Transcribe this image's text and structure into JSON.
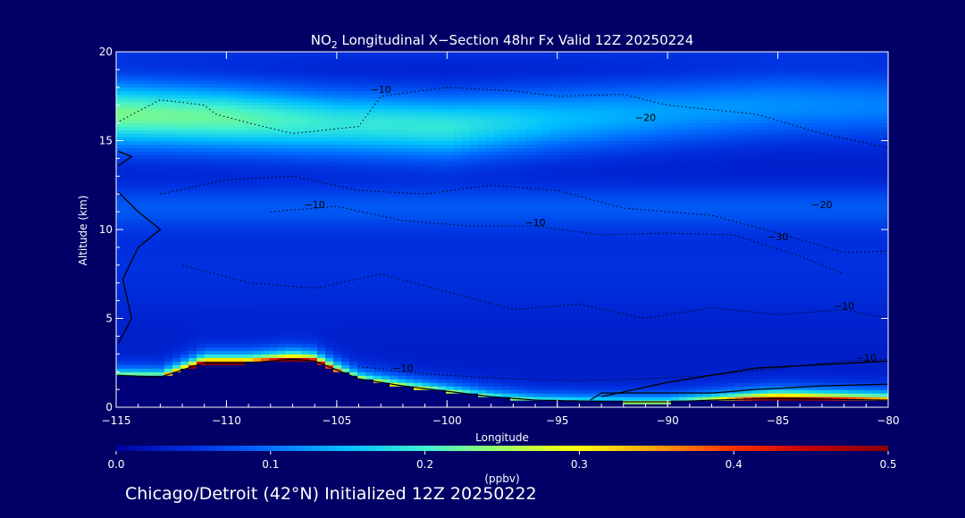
{
  "title_prefix": "NO",
  "title_sub": "2",
  "title_rest": " Longitudinal X−Section 48hr  Fx Valid 12Z 20250224",
  "footer": "Chicago/Detroit (42°N) Initialized 12Z 20250222",
  "chart_data": {
    "type": "heatmap",
    "xlabel": "Longitude",
    "ylabel": "Altitude (km)",
    "xlim": [
      -115,
      -80
    ],
    "ylim": [
      0,
      20
    ],
    "x_ticks": [
      -115,
      -110,
      -105,
      -100,
      -95,
      -90,
      -85,
      -80
    ],
    "x_tick_labels": [
      "−115",
      "−110",
      "−105",
      "−100",
      "−95",
      "−90",
      "−85",
      "−80"
    ],
    "y_ticks": [
      0,
      5,
      10,
      15,
      20
    ],
    "colorbar": {
      "label": "(ppbv)",
      "min": 0.0,
      "max": 0.5,
      "ticks": [
        0.0,
        0.1,
        0.2,
        0.3,
        0.4,
        0.5
      ],
      "tick_labels": [
        "0.0",
        "0.1",
        "0.2",
        "0.3",
        "0.4",
        "0.5"
      ],
      "colors": [
        "#0000a0",
        "#0030e0",
        "#0070ff",
        "#00c0ff",
        "#40f0d0",
        "#a0ff60",
        "#ffff00",
        "#ffa000",
        "#ff3000",
        "#c00000",
        "#880000"
      ]
    },
    "terrain_height_km": {
      "lon": [
        -115,
        -113,
        -111,
        -109,
        -107,
        -106,
        -105,
        -104,
        -102,
        -100,
        -98,
        -96,
        -94,
        -92,
        -90,
        -88,
        -85,
        -83,
        -80
      ],
      "alt": [
        1.8,
        1.7,
        2.5,
        2.5,
        2.7,
        2.6,
        2.1,
        1.6,
        1.2,
        0.9,
        0.6,
        0.4,
        0.35,
        0.3,
        0.3,
        0.4,
        0.5,
        0.45,
        0.4
      ]
    },
    "surface_layer": {
      "lon": [
        -115,
        -113,
        -111,
        -109,
        -107,
        -106,
        -105,
        -104,
        -102,
        -100,
        -98,
        -96,
        -94,
        -92,
        -90,
        -88,
        -86,
        -85,
        -84,
        -82,
        -80
      ],
      "max_ppbv": [
        0.25,
        0.32,
        0.5,
        0.5,
        0.5,
        0.5,
        0.35,
        0.3,
        0.28,
        0.25,
        0.22,
        0.2,
        0.2,
        0.22,
        0.22,
        0.3,
        0.45,
        0.5,
        0.5,
        0.45,
        0.4
      ]
    },
    "upper_layer": {
      "lon": [
        -115,
        -110,
        -105,
        -100,
        -95,
        -90,
        -85,
        -80
      ],
      "center_alt_km": [
        16.5,
        16.3,
        16.0,
        15.8,
        16.2,
        16.6,
        17.0,
        17.0
      ],
      "peak_ppbv": [
        0.2,
        0.19,
        0.16,
        0.16,
        0.12,
        0.1,
        0.09,
        0.08
      ]
    },
    "contour_labels": [
      {
        "text": "−10",
        "lon": -103,
        "alt": 17.7
      },
      {
        "text": "−20",
        "lon": -91,
        "alt": 16.1
      },
      {
        "text": "−10",
        "lon": -106,
        "alt": 11.2
      },
      {
        "text": "−10",
        "lon": -96,
        "alt": 10.2
      },
      {
        "text": "−20",
        "lon": -83,
        "alt": 11.2
      },
      {
        "text": "−30",
        "lon": -85,
        "alt": 9.4
      },
      {
        "text": "−10",
        "lon": -82,
        "alt": 5.5
      },
      {
        "text": "−10",
        "lon": -102,
        "alt": 2.0
      },
      {
        "text": "−10",
        "lon": -81,
        "alt": 2.6
      }
    ]
  }
}
